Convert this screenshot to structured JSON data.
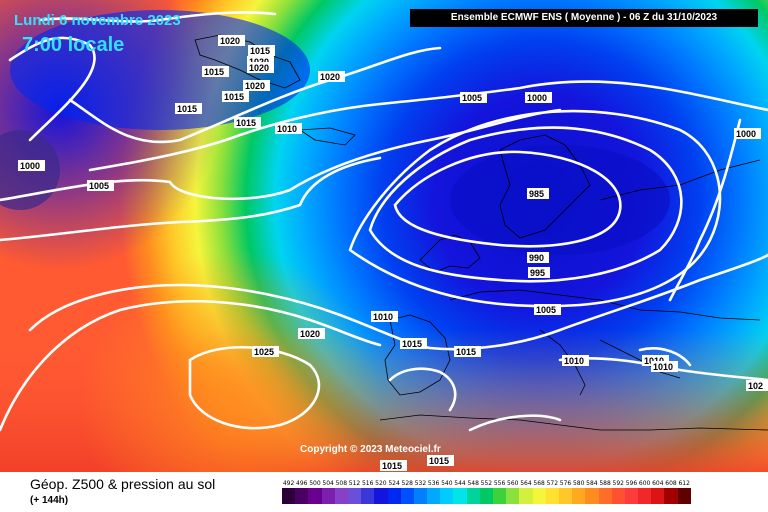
{
  "header": {
    "date": "Lundi 6 novembre 2023",
    "time": "7:00 locale",
    "model": "Ensemble ECMWF ENS  ( Moyenne )  -  06 Z du 31/10/2023"
  },
  "copyright": "Copyright © 2023 Meteociel.fr",
  "footer": {
    "product": "Géop. Z500 & pression au sol",
    "lead": "(+ 144h)"
  },
  "scale": {
    "values": [
      "492",
      "496",
      "500",
      "504",
      "508",
      "512",
      "516",
      "520",
      "524",
      "528",
      "532",
      "536",
      "540",
      "544",
      "548",
      "552",
      "556",
      "560",
      "564",
      "568",
      "572",
      "576",
      "580",
      "584",
      "588",
      "592",
      "596",
      "600",
      "604",
      "608",
      "612"
    ],
    "colors": [
      "#2b0038",
      "#4a0063",
      "#6a008f",
      "#7c1fb0",
      "#8a3fc9",
      "#6a4fd8",
      "#3a37d8",
      "#1414dc",
      "#0028f0",
      "#0050ff",
      "#0080ff",
      "#00a8ff",
      "#00ccff",
      "#00e6e6",
      "#00d49a",
      "#00c864",
      "#3cd23c",
      "#8ce03c",
      "#d2f03c",
      "#f5f53c",
      "#ffe132",
      "#ffc828",
      "#ffaa1e",
      "#ff8c1e",
      "#ff6e28",
      "#ff5032",
      "#ff3c3c",
      "#f02828",
      "#dc1414",
      "#a00000",
      "#600000"
    ]
  },
  "isobar_labels": [
    {
      "text": "1020",
      "id": "p1"
    },
    {
      "text": "1015",
      "id": "p2"
    },
    {
      "text": "1020",
      "id": "p3"
    },
    {
      "text": "1020",
      "id": "p4"
    },
    {
      "text": "1015",
      "id": "p5"
    },
    {
      "text": "1020",
      "id": "p6"
    },
    {
      "text": "1015",
      "id": "p7"
    },
    {
      "text": "1015",
      "id": "p8"
    },
    {
      "text": "1015",
      "id": "p9"
    },
    {
      "text": "1010",
      "id": "p10"
    },
    {
      "text": "1020",
      "id": "p11"
    },
    {
      "text": "1000",
      "id": "p12"
    },
    {
      "text": "1005",
      "id": "p13"
    },
    {
      "text": "1005",
      "id": "p14"
    },
    {
      "text": "1000",
      "id": "p15"
    },
    {
      "text": "1000",
      "id": "p16"
    },
    {
      "text": "985",
      "id": "p17"
    },
    {
      "text": "990",
      "id": "p18"
    },
    {
      "text": "995",
      "id": "p19"
    },
    {
      "text": "1005",
      "id": "p20"
    },
    {
      "text": "1010",
      "id": "p21"
    },
    {
      "text": "1020",
      "id": "p22"
    },
    {
      "text": "1025",
      "id": "p23"
    },
    {
      "text": "1015",
      "id": "p24"
    },
    {
      "text": "1015",
      "id": "p25"
    },
    {
      "text": "1010",
      "id": "p26"
    },
    {
      "text": "1010",
      "id": "p27"
    },
    {
      "text": "1010",
      "id": "p28"
    },
    {
      "text": "1015",
      "id": "p29"
    },
    {
      "text": "1015",
      "id": "p30"
    },
    {
      "text": "102",
      "id": "p31"
    }
  ]
}
